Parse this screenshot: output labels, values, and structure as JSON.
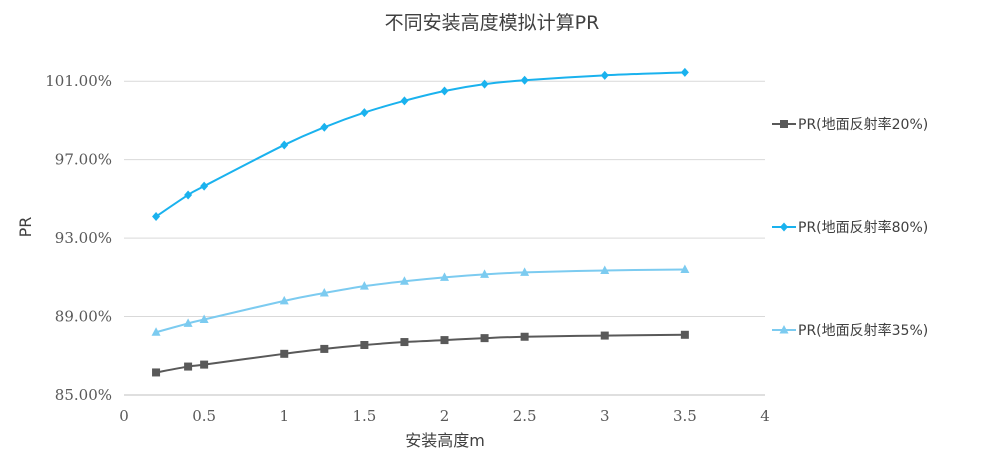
{
  "chart_data": {
    "type": "line",
    "title": "不同安装高度模拟计算PR",
    "xlabel": "安装高度m",
    "ylabel": "PR",
    "xlim": [
      0,
      4
    ],
    "ylim": [
      85,
      103
    ],
    "x_ticks": [
      "0",
      "0.5",
      "1",
      "1.5",
      "2",
      "2.5",
      "3",
      "3.5",
      "4"
    ],
    "y_ticks": [
      "85.00%",
      "89.00%",
      "93.00%",
      "97.00%",
      "101.00%"
    ],
    "grid": "horizontal",
    "legend_position": "right",
    "x": [
      0.2,
      0.4,
      0.5,
      1.0,
      1.25,
      1.5,
      1.75,
      2.0,
      2.25,
      2.5,
      3.0,
      3.5
    ],
    "series": [
      {
        "name": "PR(地面反射率20%)",
        "color": "#595959",
        "marker": "square",
        "values": [
          86.15,
          86.45,
          86.55,
          87.1,
          87.35,
          87.55,
          87.7,
          87.8,
          87.9,
          87.97,
          88.03,
          88.07
        ]
      },
      {
        "name": "PR(地面反射率80%)",
        "color": "#1ab2ee",
        "marker": "diamond",
        "values": [
          94.1,
          95.2,
          95.65,
          97.75,
          98.65,
          99.4,
          100.0,
          100.5,
          100.85,
          101.05,
          101.3,
          101.45
        ]
      },
      {
        "name": "PR(地面反射率35%)",
        "color": "#7ccbf0",
        "marker": "triangle",
        "values": [
          88.2,
          88.65,
          88.85,
          89.8,
          90.2,
          90.55,
          90.8,
          91.0,
          91.15,
          91.25,
          91.35,
          91.4
        ]
      }
    ]
  }
}
